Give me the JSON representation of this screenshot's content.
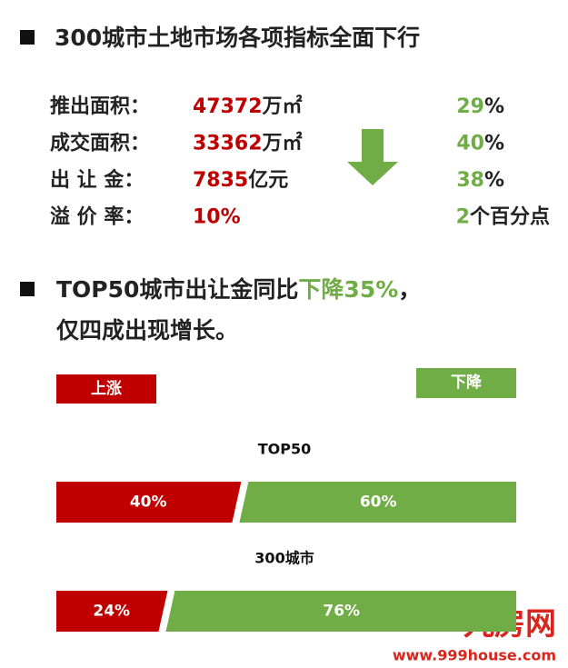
{
  "section1": {
    "title": "300城市土地市场各项指标全面下行",
    "rows": [
      {
        "label": "推出面积：",
        "value": "47372",
        "unit": "万㎡",
        "change": "29",
        "change_unit": "%"
      },
      {
        "label": "成交面积：",
        "value": "33362",
        "unit": "万㎡",
        "change": "40",
        "change_unit": "%"
      },
      {
        "label": "出 让 金：",
        "value": "7835",
        "unit": "亿元",
        "change": "38",
        "change_unit": "%"
      },
      {
        "label": "溢 价 率：",
        "value": "10%",
        "change": "2",
        "change_unit": "个百分点"
      }
    ]
  },
  "section2": {
    "title_parts": [
      "TOP50城市出让金同比",
      "下降35%",
      "，"
    ],
    "line2": "仅四成出现增长。"
  },
  "legend": {
    "up": "上涨",
    "down": "下降"
  },
  "bars": [
    {
      "name": "TOP50",
      "values": [
        40,
        60
      ],
      "value_labels": [
        "40%",
        "60%"
      ]
    },
    {
      "name": "300城市",
      "values": [
        24,
        76
      ],
      "value_labels": [
        "24%",
        "76%"
      ]
    }
  ],
  "watermark": {
    "logo": "九房网",
    "url": "www.999house.com"
  }
}
